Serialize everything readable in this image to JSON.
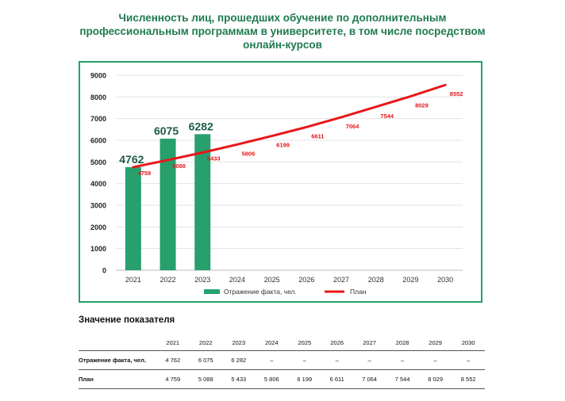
{
  "title_lines": [
    "Численность лиц, прошедших обучение по дополнительным",
    "профессиональным программам в университете, в том числе посредством",
    "онлайн-курсов"
  ],
  "colors": {
    "bar": "#27a06e",
    "line": "#e8161b",
    "title": "#1f7a4f",
    "frame": "#22a06b"
  },
  "chart_data": {
    "type": "bar",
    "categories": [
      "2021",
      "2022",
      "2023",
      "2024",
      "2025",
      "2026",
      "2027",
      "2028",
      "2029",
      "2030"
    ],
    "ylim": [
      0,
      9000
    ],
    "yticks": [
      "0",
      "1000",
      "2000",
      "3000",
      "4000",
      "5000",
      "6000",
      "7000",
      "8000",
      "9000"
    ],
    "grid": true,
    "legend_position": "bottom",
    "series": [
      {
        "name": "Отражение факта, чел.",
        "type": "bar",
        "values": [
          4762,
          6075,
          6282,
          null,
          null,
          null,
          null,
          null,
          null,
          null
        ],
        "labels": [
          "4762",
          "6075",
          "6282",
          "",
          "",
          "",
          "",
          "",
          "",
          ""
        ]
      },
      {
        "name": "План",
        "type": "line",
        "values": [
          4759,
          5088,
          5433,
          5806,
          6199,
          6611,
          7064,
          7544,
          8029,
          8552
        ],
        "labels": [
          "4759",
          "5088",
          "5433",
          "5806",
          "6199",
          "6611",
          "7064",
          "7544",
          "8029",
          "8552"
        ]
      }
    ]
  },
  "table": {
    "title": "Значение показателя",
    "header": [
      "",
      "2021",
      "2022",
      "2023",
      "2024",
      "2025",
      "2026",
      "2027",
      "2028",
      "2029",
      "2030"
    ],
    "rows": [
      [
        "Отражение факта, чел.",
        "4 762",
        "6 075",
        "6 282",
        "–",
        "–",
        "–",
        "–",
        "–",
        "–",
        "–"
      ],
      [
        "План",
        "4 759",
        "5 088",
        "5 433",
        "5 806",
        "6 199",
        "6 611",
        "7 064",
        "7 544",
        "8 029",
        "8 552"
      ]
    ]
  }
}
